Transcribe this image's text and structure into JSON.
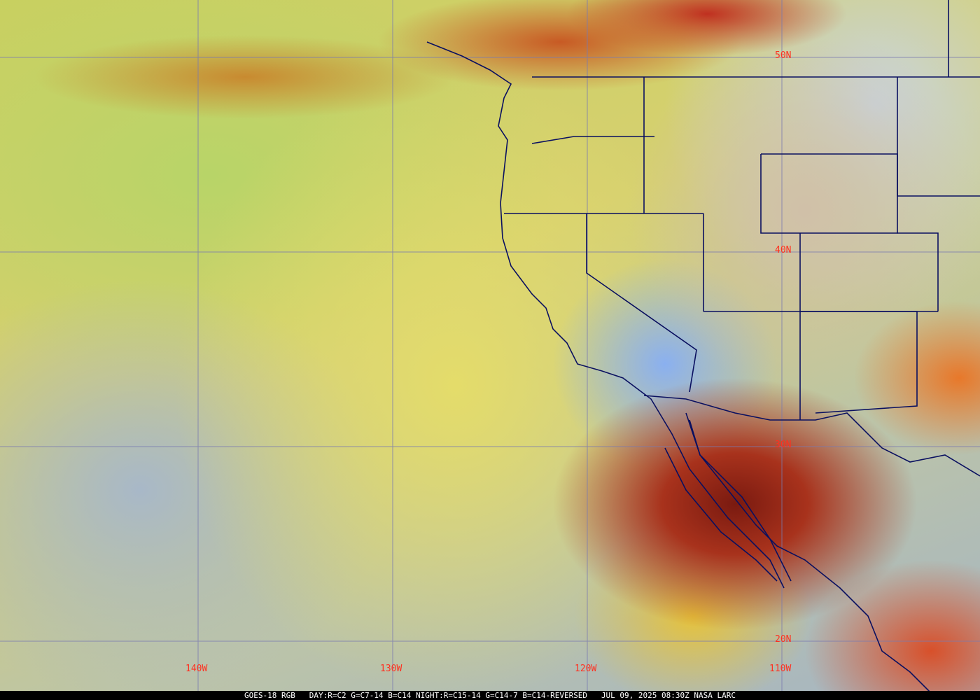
{
  "map": {
    "lon_labels": [
      "140W",
      "130W",
      "120W",
      "110W"
    ],
    "lat_labels": [
      "50N",
      "40N",
      "30N",
      "20N"
    ],
    "grid_color": "#7a7ab0",
    "label_color": "#ff3020",
    "border_color": "#0a1060"
  },
  "caption": {
    "satellite": "GOES-18 RGB",
    "recipe": "DAY:R=C2 G=C7-14 B=C14 NIGHT:R=C15-14 G=C14-7 B=C14-REVERSED",
    "datetime": "JUL 09, 2025 08:30Z",
    "source": "NASA LARC"
  }
}
